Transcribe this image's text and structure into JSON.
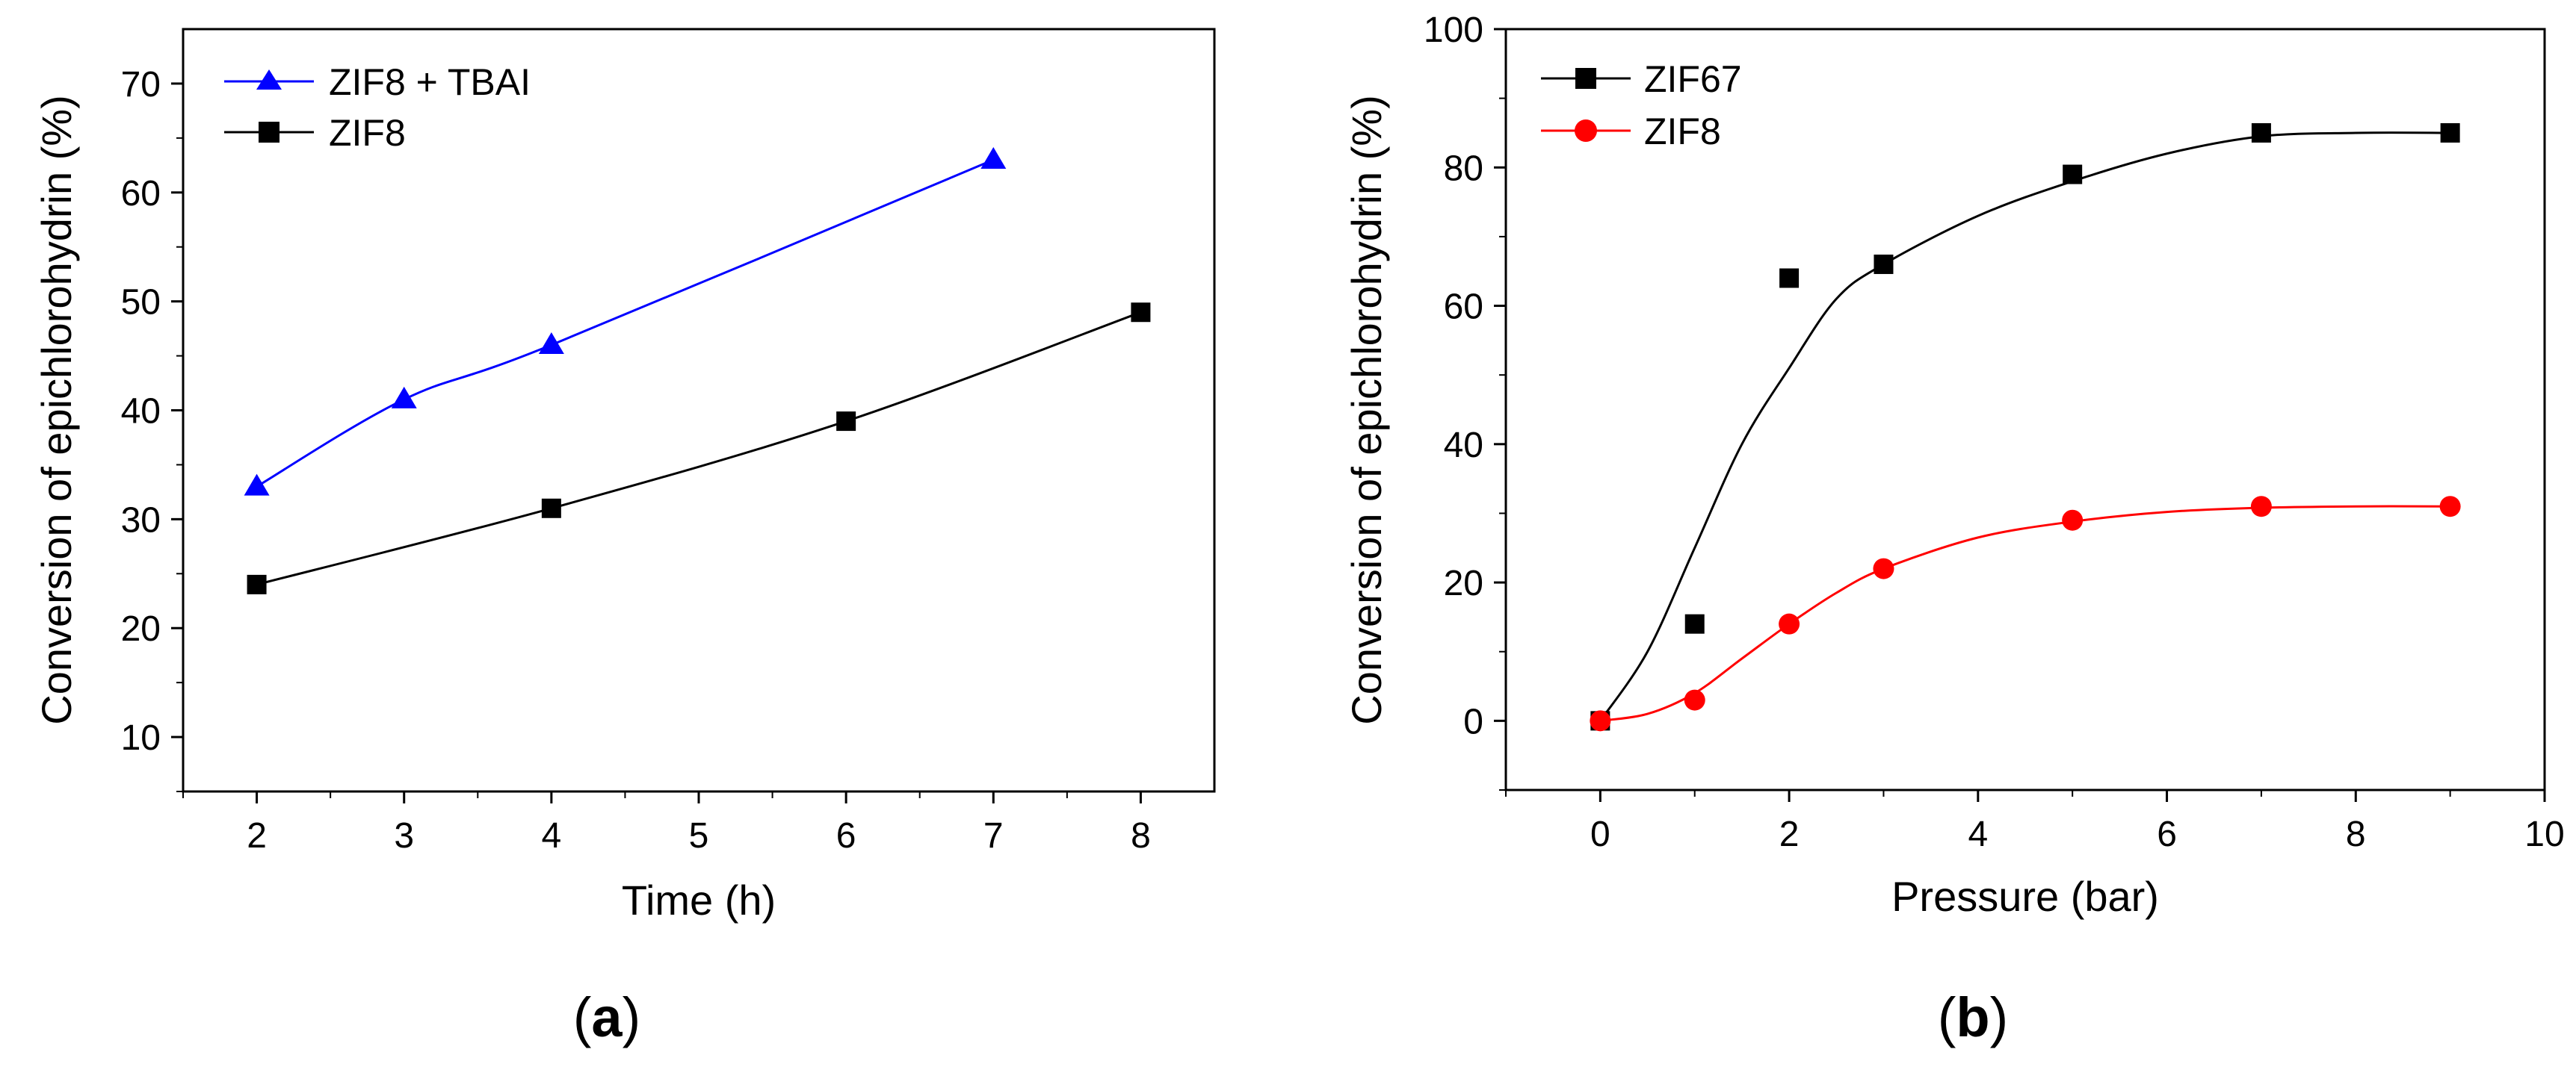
{
  "chart_data": [
    {
      "panel": "a",
      "type": "line",
      "xlabel": "Time (h)",
      "ylabel": "Conversion of epichlorohydrin (%)",
      "x_tick_labels": [
        "2",
        "3",
        "4",
        "5",
        "6",
        "7",
        "8"
      ],
      "y_tick_labels": [
        "10",
        "20",
        "30",
        "40",
        "50",
        "60",
        "70"
      ],
      "xlim": [
        1.5,
        8.5
      ],
      "ylim": [
        5,
        75
      ],
      "series": [
        {
          "name": "ZIF8 + TBAI",
          "marker": "triangle",
          "color": "#0000ff",
          "x": [
            2,
            3,
            4,
            7
          ],
          "y": [
            33,
            41,
            46,
            63
          ]
        },
        {
          "name": "ZIF8",
          "marker": "square",
          "color": "#000000",
          "x": [
            2,
            4,
            6,
            8
          ],
          "y": [
            24,
            31,
            39,
            49
          ]
        }
      ],
      "legend_position": "top-left",
      "grid": false
    },
    {
      "panel": "b",
      "type": "scatter",
      "xlabel": "Pressure (bar)",
      "ylabel": "Conversion of epichlorohydrin (%)",
      "x_tick_labels": [
        "0",
        "2",
        "4",
        "6",
        "8",
        "10"
      ],
      "y_tick_labels": [
        "0",
        "20",
        "40",
        "60",
        "80",
        "100"
      ],
      "xlim": [
        -1,
        10
      ],
      "ylim": [
        -10,
        100
      ],
      "series": [
        {
          "name": "ZIF67",
          "marker": "square",
          "color": "#000000",
          "x": [
            0,
            1,
            2,
            3,
            5,
            7,
            9
          ],
          "y": [
            0,
            14,
            64,
            66,
            79,
            85,
            85
          ],
          "fit_x": [
            0,
            0.5,
            1,
            1.5,
            2,
            2.5,
            3,
            4,
            5,
            6,
            7,
            8,
            9
          ],
          "fit_y": [
            0,
            10,
            25,
            40,
            51,
            61,
            66,
            73,
            78,
            82,
            84.5,
            85,
            85
          ]
        },
        {
          "name": "ZIF8",
          "marker": "circle",
          "color": "#ff0000",
          "x": [
            0,
            1,
            2,
            3,
            5,
            7,
            9
          ],
          "y": [
            0,
            3,
            14,
            22,
            29,
            31,
            31
          ],
          "fit_x": [
            0,
            0.5,
            1,
            1.5,
            2,
            2.5,
            3,
            4,
            5,
            6,
            7,
            8,
            9
          ],
          "fit_y": [
            0,
            1,
            4,
            9,
            14,
            18.5,
            22,
            26.5,
            28.8,
            30.2,
            30.8,
            31,
            31
          ]
        }
      ],
      "legend_position": "top-left",
      "grid": false
    }
  ],
  "panel_labels": {
    "a": {
      "open": "(",
      "letter": "a",
      "close": ")"
    },
    "b": {
      "open": "(",
      "letter": "b",
      "close": ")"
    }
  }
}
